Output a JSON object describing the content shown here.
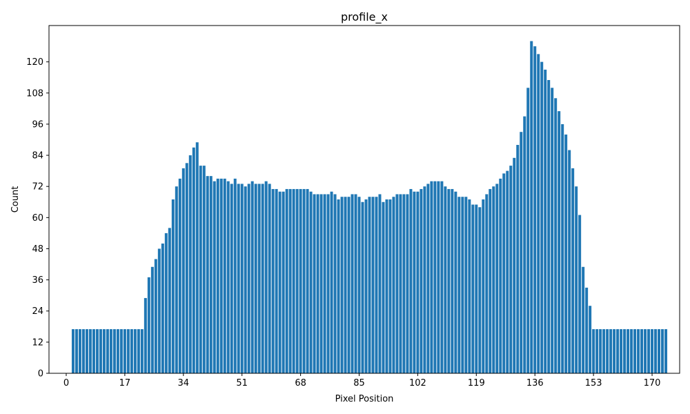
{
  "chart_data": {
    "type": "bar",
    "title": "profile_x",
    "xlabel": "Pixel Position",
    "ylabel": "Count",
    "x_start": 2,
    "values": [
      17,
      17,
      17,
      17,
      17,
      17,
      17,
      17,
      17,
      17,
      17,
      17,
      17,
      17,
      17,
      17,
      17,
      17,
      17,
      17,
      17,
      29,
      37,
      41,
      44,
      48,
      50,
      54,
      56,
      67,
      72,
      75,
      79,
      81,
      84,
      87,
      89,
      80,
      80,
      76,
      76,
      74,
      75,
      75,
      75,
      74,
      73,
      75,
      73,
      73,
      72,
      73,
      74,
      73,
      73,
      73,
      74,
      73,
      71,
      71,
      70,
      70,
      71,
      71,
      71,
      71,
      71,
      71,
      71,
      70,
      69,
      69,
      69,
      69,
      69,
      70,
      69,
      67,
      68,
      68,
      68,
      69,
      69,
      68,
      66,
      67,
      68,
      68,
      68,
      69,
      66,
      67,
      67,
      68,
      69,
      69,
      69,
      69,
      71,
      70,
      70,
      71,
      72,
      73,
      74,
      74,
      74,
      74,
      72,
      71,
      71,
      70,
      68,
      68,
      68,
      67,
      65,
      65,
      64,
      67,
      69,
      71,
      72,
      73,
      75,
      77,
      78,
      80,
      83,
      88,
      93,
      99,
      110,
      128,
      126,
      123,
      120,
      117,
      113,
      110,
      106,
      101,
      96,
      92,
      86,
      79,
      72,
      61,
      41,
      33,
      26,
      17,
      17,
      17,
      17,
      17,
      17,
      17,
      17,
      17,
      17,
      17,
      17,
      17,
      17,
      17,
      17,
      17,
      17,
      17,
      17,
      17,
      17
    ],
    "xlim": [
      -5,
      178
    ],
    "ylim": [
      0,
      134
    ],
    "xticks": [
      0,
      17,
      34,
      51,
      68,
      85,
      102,
      119,
      136,
      153,
      170
    ],
    "yticks": [
      0,
      12,
      24,
      36,
      48,
      60,
      72,
      84,
      96,
      108,
      120
    ],
    "bar_color": "#1f77b4",
    "grid": false,
    "legend": false
  }
}
